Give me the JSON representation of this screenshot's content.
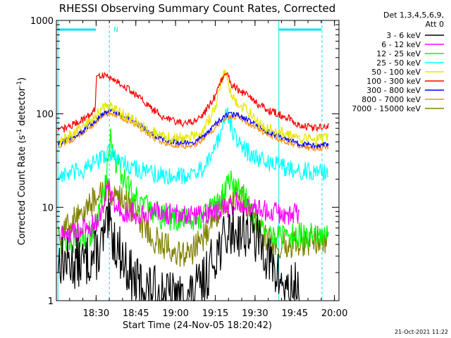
{
  "chart_data": {
    "type": "line",
    "title": "RHESSI Observing Summary Count Rates, Corrected",
    "xlabel": "Start Time (24-Nov-05 18:20:42)",
    "ylabel_main": "Corrected Count Rate (s",
    "ylabel_sup1": "-1",
    "ylabel_mid": " detector",
    "ylabel_sup2": "-1",
    "ylabel_end": ")",
    "y_scale": "log",
    "ylim": [
      1,
      1000
    ],
    "xlim_minutes": [
      -5.7,
      101
    ],
    "x_ticks": [
      {
        "t": 9.3,
        "label": "18:30"
      },
      {
        "t": 24.3,
        "label": "18:45"
      },
      {
        "t": 39.3,
        "label": "19:00"
      },
      {
        "t": 54.3,
        "label": "19:15"
      },
      {
        "t": 69.3,
        "label": "19:30"
      },
      {
        "t": 84.3,
        "label": "19:45"
      },
      {
        "t": 99.3,
        "label": "20:00"
      }
    ],
    "y_ticks": [
      {
        "v": 1,
        "label": "1"
      },
      {
        "v": 10,
        "label": "10"
      },
      {
        "v": 100,
        "label": "100"
      },
      {
        "v": 1000,
        "label": "1000"
      }
    ],
    "legend_header": [
      "Det 1,3,4,5,6,9,",
      "Att 0"
    ],
    "legend_position": "right",
    "annotation_N": "N",
    "timestamp": "21-Oct-2021 11:22",
    "events": {
      "solid_lines_t": [
        -5.1,
        78.3
      ],
      "dashed_lines_t": [
        14.3,
        94.6
      ],
      "night_bars": [
        [
          -5.1,
          9.2
        ],
        [
          78.3,
          94.4
        ]
      ]
    },
    "series": [
      {
        "name": "3 - 6 keV",
        "color": "#000000",
        "t": [
          -5,
          0,
          5,
          10,
          12,
          14,
          16,
          18,
          20,
          22,
          24,
          30,
          38,
          42,
          46,
          50,
          52,
          55,
          58,
          60,
          62,
          65,
          68,
          70,
          72,
          74,
          76,
          78,
          80,
          82,
          84,
          86
        ],
        "v": [
          2.8,
          2.5,
          2.6,
          3.2,
          4.5,
          6.5,
          4.5,
          3.5,
          2.6,
          2.0,
          1.6,
          1.3,
          1.1,
          1.0,
          1.2,
          1.6,
          2.2,
          3.5,
          4.5,
          5.6,
          5.6,
          5.6,
          5.2,
          4.5,
          4.0,
          3.0,
          2.2,
          1.8,
          1.5,
          1.2,
          1.4,
          1.6
        ]
      },
      {
        "name": "6 - 12 keV",
        "color": "#ff00ff",
        "t": [
          -4,
          2,
          6,
          9,
          11,
          13,
          14,
          15,
          17,
          20,
          24,
          30,
          40,
          50,
          55,
          60,
          62,
          65,
          70,
          75,
          80,
          85,
          86
        ],
        "v": [
          5,
          5.5,
          6,
          6.5,
          8.5,
          12,
          20,
          13,
          10,
          9,
          8.5,
          8.5,
          8.5,
          8.5,
          9,
          10,
          11,
          10.5,
          9.5,
          9,
          8.5,
          8.5,
          8.5
        ]
      },
      {
        "name": "12 - 25 keV",
        "color": "#00ff00",
        "t": [
          -4,
          2,
          6,
          9,
          11,
          13,
          14,
          15,
          16,
          20,
          25,
          30,
          34,
          38,
          42,
          46,
          50,
          54,
          57,
          59,
          60,
          62,
          64,
          66,
          68,
          70,
          74,
          78,
          82,
          86,
          92,
          97
        ],
        "v": [
          4.2,
          4.5,
          5,
          6,
          10,
          20,
          45,
          55,
          35,
          20,
          12,
          9,
          8,
          7.5,
          7.5,
          7.5,
          8.5,
          10,
          13,
          17,
          20,
          18,
          16,
          12,
          9,
          7,
          5.5,
          5,
          4.8,
          5,
          5,
          5
        ]
      },
      {
        "name": "25 - 50 keV",
        "color": "#00ffff",
        "t": [
          -5,
          0,
          5,
          9,
          12,
          14,
          16,
          18,
          22,
          26,
          30,
          34,
          38,
          42,
          46,
          50,
          54,
          57,
          58,
          59,
          60,
          62,
          64,
          66,
          70,
          74,
          78,
          82,
          86,
          92,
          97
        ],
        "v": [
          22,
          23,
          25,
          30,
          35,
          40,
          35,
          32,
          28,
          25,
          23,
          22,
          22,
          22,
          23,
          26,
          40,
          70,
          110,
          100,
          80,
          55,
          45,
          40,
          34,
          30,
          28,
          26,
          25,
          23,
          25
        ]
      },
      {
        "name": "50 - 100 keV",
        "color": "#e6e600",
        "t": [
          -5,
          0,
          5,
          9,
          12,
          14,
          16,
          18,
          22,
          26,
          30,
          34,
          38,
          42,
          46,
          50,
          54,
          57,
          58,
          59,
          60,
          62,
          64,
          66,
          70,
          74,
          78,
          82,
          86,
          92,
          97
        ],
        "v": [
          50,
          60,
          75,
          95,
          115,
          125,
          115,
          105,
          90,
          75,
          65,
          58,
          55,
          55,
          58,
          68,
          110,
          250,
          290,
          250,
          170,
          140,
          120,
          110,
          85,
          70,
          65,
          60,
          55,
          52,
          58
        ]
      },
      {
        "name": "100 - 300 keV",
        "color": "#ff0000",
        "t": [
          -5,
          0,
          5,
          9,
          9.4,
          12,
          14,
          16,
          18,
          22,
          26,
          30,
          34,
          38,
          42,
          46,
          50,
          54,
          57,
          58,
          59,
          60,
          62,
          64,
          66,
          70,
          74,
          78,
          82,
          86,
          92,
          97
        ],
        "v": [
          65,
          75,
          90,
          110,
          250,
          260,
          250,
          235,
          215,
          180,
          145,
          115,
          95,
          85,
          80,
          82,
          100,
          150,
          240,
          290,
          260,
          210,
          190,
          170,
          160,
          130,
          110,
          100,
          90,
          75,
          70,
          75
        ]
      },
      {
        "name": "300 - 800 keV",
        "color": "#0000ff",
        "t": [
          -5,
          0,
          5,
          9,
          12,
          14,
          16,
          18,
          22,
          26,
          30,
          34,
          38,
          42,
          46,
          50,
          54,
          57,
          58,
          59,
          60,
          62,
          64,
          66,
          70,
          74,
          78,
          82,
          86,
          92,
          97
        ],
        "v": [
          48,
          55,
          68,
          85,
          100,
          108,
          105,
          100,
          88,
          75,
          62,
          54,
          50,
          49,
          50,
          58,
          75,
          90,
          95,
          98,
          100,
          98,
          95,
          88,
          75,
          65,
          58,
          53,
          48,
          45,
          48
        ]
      },
      {
        "name": "800 - 7000 keV",
        "color": "#ff8c1a",
        "t": [
          -5,
          0,
          5,
          9,
          12,
          14,
          16,
          18,
          22,
          26,
          30,
          34,
          38,
          42,
          46,
          50,
          54,
          57,
          58,
          59,
          60,
          62,
          64,
          66,
          70,
          74,
          78,
          82,
          86,
          92,
          97
        ],
        "v": [
          45,
          52,
          64,
          80,
          95,
          102,
          100,
          95,
          83,
          70,
          58,
          50,
          46,
          45,
          46,
          54,
          70,
          85,
          90,
          92,
          95,
          93,
          90,
          83,
          70,
          60,
          54,
          49,
          45,
          42,
          45
        ]
      },
      {
        "name": "7000 - 15000 keV",
        "color": "#808000",
        "t": [
          -5,
          -2,
          2,
          6,
          9,
          11,
          13,
          14,
          15,
          17,
          19,
          22,
          26,
          30,
          34,
          38,
          42,
          46,
          50,
          54,
          57,
          59,
          60,
          62,
          64,
          66,
          68,
          70,
          74,
          78,
          82,
          86,
          92,
          97
        ],
        "v": [
          5,
          6,
          8,
          10,
          12,
          14,
          15,
          15,
          15,
          14,
          12,
          10,
          7,
          5,
          4,
          3.5,
          3.2,
          3.5,
          5,
          8,
          11,
          12.5,
          13,
          13,
          12,
          11,
          9,
          6.5,
          4.5,
          4,
          4,
          4.2,
          4.5,
          4.5
        ]
      }
    ]
  }
}
